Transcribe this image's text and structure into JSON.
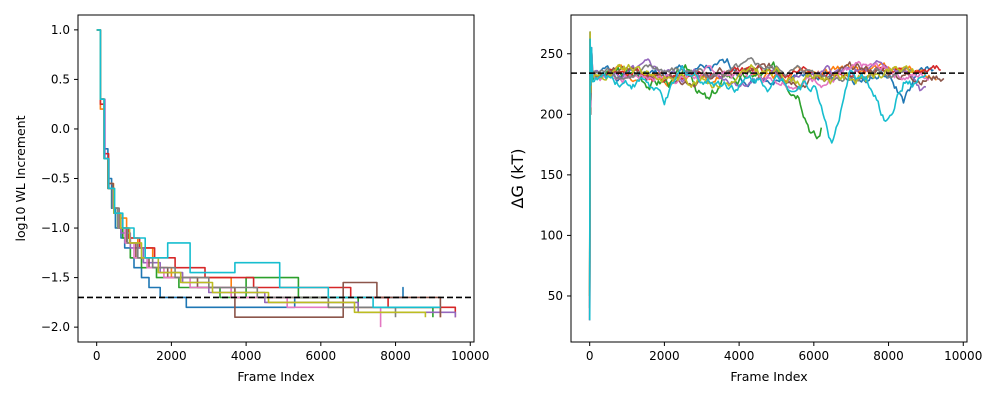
{
  "colors": [
    "#1f77b4",
    "#ff7f0e",
    "#2ca02c",
    "#d62728",
    "#9467bd",
    "#8c564b",
    "#e377c2",
    "#7f7f7f",
    "#bcbd22",
    "#17becf"
  ],
  "reference_line_color": "#000000",
  "chart_data": [
    {
      "type": "line",
      "title": "",
      "xlabel": "Frame Index",
      "ylabel": "log10 WL Increment",
      "xlim": [
        -500,
        10100
      ],
      "ylim": [
        -2.15,
        1.15
      ],
      "xticks": [
        0,
        2000,
        4000,
        6000,
        8000,
        10000
      ],
      "xtick_labels": [
        "0",
        "2000",
        "4000",
        "6000",
        "8000",
        "10000"
      ],
      "yticks": [
        1.0,
        0.5,
        0.0,
        -0.5,
        -1.0,
        -1.5,
        -2.0
      ],
      "ytick_labels": [
        "1.0",
        "0.5",
        "0.0",
        "−0.5",
        "−1.0",
        "−1.5",
        "−2.0"
      ],
      "grid": false,
      "reference_line": {
        "y": -1.7,
        "style": "dashed"
      },
      "series": [
        {
          "x": [
            0,
            50,
            100,
            200,
            300,
            400,
            500,
            650,
            750,
            900,
            1000,
            1200,
            1400,
            1700,
            2400,
            5300,
            8200,
            8200
          ],
          "y": [
            1.0,
            1.0,
            0.3,
            -0.2,
            -0.5,
            -0.8,
            -1.0,
            -1.1,
            -1.2,
            -1.3,
            -1.4,
            -1.5,
            -1.6,
            -1.7,
            -1.8,
            -1.7,
            -1.6,
            -1.7
          ]
        },
        {
          "x": [
            0,
            50,
            100,
            200,
            300,
            450,
            600,
            800,
            1100,
            1500,
            2000,
            3600,
            6200,
            9200
          ],
          "y": [
            1.0,
            1.0,
            0.2,
            -0.3,
            -0.55,
            -0.8,
            -0.9,
            -1.1,
            -1.2,
            -1.4,
            -1.5,
            -1.7,
            -1.8,
            -1.9
          ]
        },
        {
          "x": [
            0,
            50,
            100,
            200,
            300,
            420,
            560,
            700,
            900,
            1200,
            1600,
            2200,
            3300,
            4000,
            5400,
            7000,
            9000
          ],
          "y": [
            1.0,
            1.0,
            0.3,
            -0.3,
            -0.6,
            -0.8,
            -1.0,
            -1.1,
            -1.3,
            -1.4,
            -1.5,
            -1.6,
            -1.7,
            -1.5,
            -1.7,
            -1.8,
            -1.9
          ]
        },
        {
          "x": [
            0,
            60,
            100,
            200,
            320,
            460,
            600,
            850,
            1150,
            1550,
            2100,
            2900,
            4200,
            6800,
            7800,
            9600
          ],
          "y": [
            1.0,
            1.0,
            0.25,
            -0.25,
            -0.6,
            -0.85,
            -1.0,
            -1.1,
            -1.2,
            -1.3,
            -1.4,
            -1.5,
            -1.6,
            -1.7,
            -1.8,
            -1.9
          ]
        },
        {
          "x": [
            0,
            50,
            100,
            220,
            330,
            470,
            650,
            900,
            1250,
            1700,
            2300,
            3000,
            4500,
            7000,
            9600
          ],
          "y": [
            1.0,
            1.0,
            0.3,
            -0.3,
            -0.6,
            -0.85,
            -1.05,
            -1.2,
            -1.35,
            -1.45,
            -1.55,
            -1.65,
            -1.75,
            -1.85,
            -1.9
          ]
        },
        {
          "x": [
            0,
            50,
            100,
            200,
            320,
            440,
            580,
            780,
            1050,
            1400,
            1900,
            2700,
            3700,
            6600,
            7500,
            9200
          ],
          "y": [
            1.0,
            1.0,
            0.3,
            -0.3,
            -0.55,
            -0.8,
            -1.0,
            -1.15,
            -1.3,
            -1.4,
            -1.5,
            -1.6,
            -1.9,
            -1.55,
            -1.7,
            -1.9
          ]
        },
        {
          "x": [
            0,
            50,
            100,
            200,
            310,
            430,
            580,
            760,
            1000,
            1350,
            1800,
            2500,
            3600,
            5100,
            7600,
            7600
          ],
          "y": [
            1.0,
            1.0,
            0.3,
            -0.3,
            -0.6,
            -0.8,
            -1.0,
            -1.15,
            -1.3,
            -1.4,
            -1.5,
            -1.6,
            -1.7,
            -1.8,
            -1.9,
            -2.0
          ]
        },
        {
          "x": [
            0,
            50,
            100,
            200,
            300,
            440,
            600,
            820,
            1100,
            1500,
            2100,
            3000,
            4300,
            6200,
            8000
          ],
          "y": [
            1.0,
            1.0,
            0.3,
            -0.3,
            -0.6,
            -0.8,
            -1.0,
            -1.15,
            -1.3,
            -1.4,
            -1.5,
            -1.6,
            -1.7,
            -1.8,
            -1.9
          ]
        },
        {
          "x": [
            0,
            50,
            100,
            200,
            320,
            460,
            640,
            880,
            1200,
            1650,
            2250,
            3100,
            4600,
            6900,
            8800
          ],
          "y": [
            1.0,
            1.0,
            0.3,
            -0.3,
            -0.6,
            -0.85,
            -1.0,
            -1.15,
            -1.3,
            -1.45,
            -1.55,
            -1.65,
            -1.75,
            -1.85,
            -1.9
          ]
        },
        {
          "x": [
            0,
            50,
            100,
            200,
            320,
            480,
            700,
            1000,
            1300,
            1900,
            2500,
            3700,
            4900,
            6200,
            7400,
            9200
          ],
          "y": [
            1.0,
            1.0,
            0.3,
            -0.3,
            -0.6,
            -0.85,
            -1.0,
            -1.1,
            -1.3,
            -1.15,
            -1.45,
            -1.35,
            -1.6,
            -1.7,
            -1.8,
            -1.8
          ]
        }
      ]
    },
    {
      "type": "line",
      "title": "",
      "xlabel": "Frame Index",
      "ylabel": "ΔG (kT)",
      "xlim": [
        -500,
        10100
      ],
      "ylim": [
        12,
        282
      ],
      "xticks": [
        0,
        2000,
        4000,
        6000,
        8000,
        10000
      ],
      "xtick_labels": [
        "0",
        "2000",
        "4000",
        "6000",
        "8000",
        "10000"
      ],
      "yticks": [
        50,
        100,
        150,
        200,
        250
      ],
      "ytick_labels": [
        "50",
        "100",
        "150",
        "200",
        "250"
      ],
      "grid": false,
      "reference_line": {
        "y": 234,
        "style": "dashed"
      },
      "series": [
        {
          "length": 9200,
          "base": 232,
          "amp": 12,
          "seed": 1,
          "dips": [
            [
              8400,
              22
            ]
          ]
        },
        {
          "length": 9300,
          "base": 234,
          "amp": 10,
          "seed": 2,
          "dips": []
        },
        {
          "length": 6200,
          "base": 230,
          "amp": 14,
          "seed": 3,
          "dips": [
            [
              3200,
              22
            ],
            [
              6100,
              40
            ]
          ]
        },
        {
          "length": 9400,
          "base": 235,
          "amp": 9,
          "seed": 4,
          "dips": []
        },
        {
          "length": 9000,
          "base": 232,
          "amp": 11,
          "seed": 5,
          "dips": [
            [
              8900,
              18
            ]
          ]
        },
        {
          "length": 9500,
          "base": 234,
          "amp": 10,
          "seed": 6,
          "dips": []
        },
        {
          "length": 9100,
          "base": 233,
          "amp": 10,
          "seed": 7,
          "dips": []
        },
        {
          "length": 8600,
          "base": 234,
          "amp": 9,
          "seed": 8,
          "dips": []
        },
        {
          "length": 8700,
          "base": 232,
          "amp": 12,
          "seed": 9,
          "dips": []
        },
        {
          "length": 9000,
          "base": 230,
          "amp": 13,
          "seed": 10,
          "dips": [
            [
              2000,
              22
            ],
            [
              6500,
              50
            ],
            [
              7900,
              38
            ]
          ]
        }
      ]
    }
  ]
}
